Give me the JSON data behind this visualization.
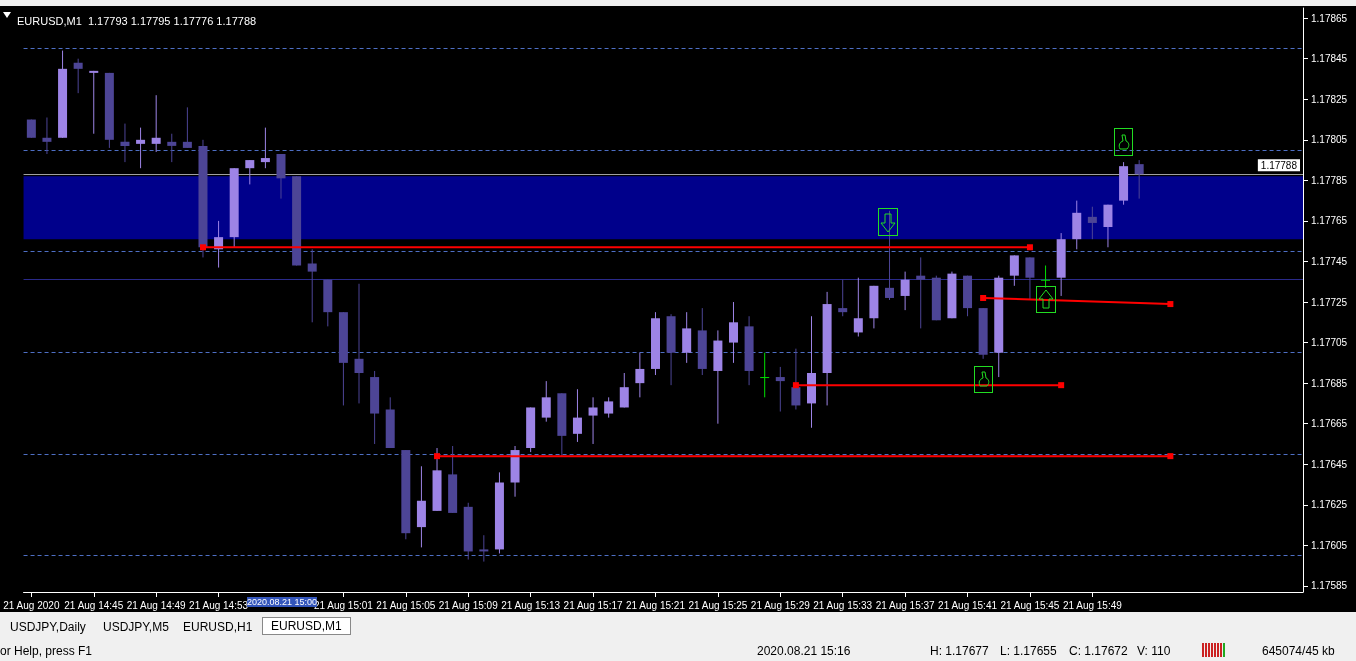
{
  "chart_data": {
    "type": "candlestick",
    "title": "EURUSD,M1  1.17793 1.17795 1.17776 1.17788",
    "categories": [
      "21 Aug 2020",
      null,
      null,
      null,
      "21 Aug 14:45",
      null,
      null,
      null,
      "21 Aug 14:49",
      null,
      null,
      null,
      "21 Aug 14:53",
      null,
      null,
      null,
      null,
      null,
      null,
      null,
      "21 Aug 15:01",
      null,
      null,
      null,
      "21 Aug 15:05",
      null,
      null,
      null,
      "21 Aug 15:09",
      null,
      null,
      null,
      "21 Aug 15:13",
      null,
      null,
      null,
      "21 Aug 15:17",
      null,
      null,
      null,
      "21 Aug 15:21",
      null,
      null,
      null,
      "21 Aug 15:25",
      null,
      null,
      null,
      "21 Aug 15:29",
      null,
      null,
      null,
      "21 Aug 15:33",
      null,
      null,
      null,
      "21 Aug 15:37",
      null,
      null,
      null,
      "21 Aug 15:41",
      null,
      null,
      null,
      "21 Aug 15:45",
      null,
      null,
      null,
      "21 Aug 15:49",
      null,
      null,
      null,
      null,
      null,
      null,
      null,
      null,
      null,
      null,
      null,
      null,
      null
    ],
    "ohlc": [
      [
        1.17815,
        1.17815,
        1.17806,
        1.17806
      ],
      [
        1.17806,
        1.17816,
        1.17798,
        1.17804
      ],
      [
        1.17806,
        1.17849,
        1.17806,
        1.1784
      ],
      [
        1.17843,
        1.17845,
        1.17828,
        1.1784
      ],
      [
        1.17838,
        1.17839,
        1.17808,
        1.17839
      ],
      [
        1.17838,
        1.17838,
        1.17801,
        1.17805
      ],
      [
        1.17804,
        1.17813,
        1.17794,
        1.17802
      ],
      [
        1.17803,
        1.17811,
        1.17791,
        1.17805
      ],
      [
        1.17803,
        1.17827,
        1.17799,
        1.17806
      ],
      [
        1.17804,
        1.17808,
        1.17794,
        1.17802
      ],
      [
        1.17804,
        1.17821,
        1.17801,
        1.17801
      ],
      [
        1.17802,
        1.17805,
        1.17747,
        1.17752
      ],
      [
        1.17751,
        1.17765,
        1.17742,
        1.17757
      ],
      [
        1.17757,
        1.17791,
        1.17752,
        1.17791
      ],
      [
        1.17791,
        1.17795,
        1.17783,
        1.17795
      ],
      [
        1.17794,
        1.17811,
        1.17791,
        1.17796
      ],
      [
        1.17798,
        1.17798,
        1.17776,
        1.17786
      ],
      [
        1.17787,
        1.17787,
        1.17743,
        1.17743
      ],
      [
        1.17744,
        1.17751,
        1.17715,
        1.1774
      ],
      [
        1.17736,
        1.17736,
        1.17713,
        1.1772
      ],
      [
        1.1772,
        1.1772,
        1.17674,
        1.17695
      ],
      [
        1.17697,
        1.17734,
        1.17675,
        1.1769
      ],
      [
        1.17688,
        1.17691,
        1.17655,
        1.1767
      ],
      [
        1.17672,
        1.17678,
        1.17653,
        1.17653
      ],
      [
        1.17652,
        1.17652,
        1.17608,
        1.17611
      ],
      [
        1.17614,
        1.17644,
        1.17604,
        1.17627
      ],
      [
        1.17622,
        1.17653,
        1.17622,
        1.17642
      ],
      [
        1.1764,
        1.17654,
        1.17621,
        1.17621
      ],
      [
        1.17624,
        1.17626,
        1.17598,
        1.17602
      ],
      [
        1.17603,
        1.1761,
        1.17597,
        1.17602
      ],
      [
        1.17603,
        1.17641,
        1.17601,
        1.17636
      ],
      [
        1.17636,
        1.17654,
        1.17629,
        1.17652
      ],
      [
        1.17653,
        1.17673,
        1.17651,
        1.17673
      ],
      [
        1.17668,
        1.17686,
        1.17666,
        1.17678
      ],
      [
        1.1768,
        1.1768,
        1.17649,
        1.17659
      ],
      [
        1.1766,
        1.17682,
        1.17656,
        1.17668
      ],
      [
        1.17669,
        1.17678,
        1.17655,
        1.17673
      ],
      [
        1.1767,
        1.17678,
        1.17668,
        1.17676
      ],
      [
        1.17673,
        1.1769,
        1.17673,
        1.17683
      ],
      [
        1.17685,
        1.177,
        1.17678,
        1.17692
      ],
      [
        1.17692,
        1.1772,
        1.17689,
        1.17717
      ],
      [
        1.17718,
        1.17719,
        1.17684,
        1.177
      ],
      [
        1.177,
        1.1772,
        1.17695,
        1.17712
      ],
      [
        1.17711,
        1.17722,
        1.17689,
        1.17692
      ],
      [
        1.17691,
        1.17711,
        1.17665,
        1.17706
      ],
      [
        1.17705,
        1.17725,
        1.17695,
        1.17715
      ],
      [
        1.17713,
        1.17718,
        1.17684,
        1.17691
      ],
      [
        1.17688,
        1.177,
        1.17678,
        1.17688
      ],
      [
        1.17688,
        1.17693,
        1.17671,
        1.17686
      ],
      [
        1.17683,
        1.17702,
        1.17672,
        1.17674
      ],
      [
        1.17675,
        1.17718,
        1.17663,
        1.1769
      ],
      [
        1.1769,
        1.1773,
        1.17674,
        1.17724
      ],
      [
        1.17722,
        1.17736,
        1.17718,
        1.1772
      ],
      [
        1.1771,
        1.17737,
        1.17708,
        1.17717
      ],
      [
        1.17717,
        1.17733,
        1.17712,
        1.17733
      ],
      [
        1.17732,
        1.1777,
        1.17726,
        1.17727
      ],
      [
        1.17728,
        1.1774,
        1.17721,
        1.17736
      ],
      [
        1.17738,
        1.17747,
        1.17712,
        1.17736
      ],
      [
        1.17737,
        1.17738,
        1.17716,
        1.17716
      ],
      [
        1.17717,
        1.1774,
        1.17717,
        1.17739
      ],
      [
        1.17738,
        1.17738,
        1.17718,
        1.17722
      ],
      [
        1.17722,
        1.17722,
        1.17697,
        1.17699
      ],
      [
        1.177,
        1.17738,
        1.17688,
        1.17737
      ],
      [
        1.17738,
        1.17748,
        1.17733,
        1.17748
      ],
      [
        1.17747,
        1.17747,
        1.17726,
        1.17737
      ],
      [
        1.17736,
        1.17743,
        1.17732,
        1.17736
      ],
      [
        1.17737,
        1.17759,
        1.17728,
        1.17756
      ],
      [
        1.17756,
        1.17775,
        1.17751,
        1.17769
      ],
      [
        1.17767,
        1.17772,
        1.17756,
        1.17764
      ],
      [
        1.17762,
        1.17773,
        1.17752,
        1.17773
      ],
      [
        1.17775,
        1.17794,
        1.17773,
        1.17792
      ],
      [
        1.17793,
        1.17795,
        1.17776,
        1.17788
      ],
      null,
      null,
      null,
      null,
      null,
      null,
      null,
      null,
      null,
      null
    ],
    "colors": [
      "#4d4596",
      "#4d4596",
      "#9d84e6",
      "#4d4596",
      "#9d84e6",
      "#4d4596",
      "#4d4596",
      "#9d84e6",
      "#9d84e6",
      "#4d4596",
      "#4d4596",
      "#4d4596",
      "#9d84e6",
      "#9d84e6",
      "#9d84e6",
      "#9d84e6",
      "#4d4596",
      "#4d4596",
      "#4d4596",
      "#4d4596",
      "#4d4596",
      "#4d4596",
      "#4d4596",
      "#4d4596",
      "#4d4596",
      "#9d84e6",
      "#9d84e6",
      "#4d4596",
      "#4d4596",
      "#4d4596",
      "#9d84e6",
      "#9d84e6",
      "#9d84e6",
      "#9d84e6",
      "#4d4596",
      "#9d84e6",
      "#9d84e6",
      "#9d84e6",
      "#9d84e6",
      "#9d84e6",
      "#9d84e6",
      "#4d4596",
      "#9d84e6",
      "#4d4596",
      "#9d84e6",
      "#9d84e6",
      "#4d4596",
      "#00e000",
      "#4d4596",
      "#4d4596",
      "#9d84e6",
      "#9d84e6",
      "#4d4596",
      "#9d84e6",
      "#9d84e6",
      "#4d4596",
      "#9d84e6",
      "#4d4596",
      "#4d4596",
      "#9d84e6",
      "#4d4596",
      "#4d4596",
      "#9d84e6",
      "#9d84e6",
      "#4d4596",
      "#00e000",
      "#9d84e6",
      "#9d84e6",
      "#4d4596",
      "#9d84e6",
      "#9d84e6",
      "#4d4596",
      null,
      null,
      null,
      null,
      null,
      null,
      null,
      null,
      null,
      null
    ],
    "series": [
      {
        "type": "line",
        "color": "#ff0000",
        "marker": "square",
        "values": [
          null,
          null,
          null,
          null,
          null,
          null,
          null,
          null,
          null,
          null,
          null,
          1.17752,
          null,
          null,
          null,
          null,
          null,
          null,
          null,
          null,
          null,
          null,
          null,
          null,
          null,
          null,
          null,
          null,
          null,
          null,
          null,
          null,
          null,
          null,
          null,
          null,
          null,
          null,
          null,
          null,
          null,
          null,
          null,
          null,
          null,
          null,
          null,
          null,
          null,
          null,
          null,
          null,
          null,
          null,
          null,
          null,
          null,
          null,
          null,
          null,
          null,
          null,
          null,
          null,
          1.17752,
          null,
          null,
          null,
          null,
          null,
          null,
          null,
          null,
          null,
          null,
          null,
          null,
          null,
          null,
          null,
          null,
          null
        ]
      },
      {
        "type": "line",
        "color": "#ff0000",
        "marker": "square",
        "values": [
          null,
          null,
          null,
          null,
          null,
          null,
          null,
          null,
          null,
          null,
          null,
          null,
          null,
          null,
          null,
          null,
          null,
          null,
          null,
          null,
          null,
          null,
          null,
          null,
          null,
          null,
          1.17649,
          null,
          null,
          null,
          null,
          null,
          null,
          null,
          null,
          null,
          null,
          null,
          null,
          null,
          null,
          null,
          null,
          null,
          null,
          null,
          null,
          null,
          null,
          null,
          null,
          null,
          null,
          null,
          null,
          null,
          null,
          null,
          null,
          null,
          null,
          null,
          null,
          null,
          null,
          null,
          null,
          null,
          null,
          null,
          null,
          null,
          null,
          1.17649,
          null,
          null,
          null,
          null,
          null,
          null,
          null,
          null
        ]
      },
      {
        "type": "line",
        "color": "#ff0000",
        "marker": "square",
        "values": [
          null,
          null,
          null,
          null,
          null,
          null,
          null,
          null,
          null,
          null,
          null,
          null,
          null,
          null,
          null,
          null,
          null,
          null,
          null,
          null,
          null,
          null,
          null,
          null,
          null,
          null,
          null,
          null,
          null,
          null,
          null,
          null,
          null,
          null,
          null,
          null,
          null,
          null,
          null,
          null,
          null,
          null,
          null,
          null,
          null,
          null,
          null,
          null,
          null,
          1.17684,
          null,
          null,
          null,
          null,
          null,
          null,
          null,
          null,
          null,
          null,
          null,
          null,
          null,
          null,
          null,
          null,
          1.17684,
          null,
          null,
          null,
          null,
          null,
          null,
          null,
          null,
          null,
          null,
          null,
          null,
          null,
          null,
          null
        ]
      },
      {
        "type": "line",
        "color": "#ff0000",
        "marker": "square",
        "values": [
          null,
          null,
          null,
          null,
          null,
          null,
          null,
          null,
          null,
          null,
          null,
          null,
          null,
          null,
          null,
          null,
          null,
          null,
          null,
          null,
          null,
          null,
          null,
          null,
          null,
          null,
          null,
          null,
          null,
          null,
          null,
          null,
          null,
          null,
          null,
          null,
          null,
          null,
          null,
          null,
          null,
          null,
          null,
          null,
          null,
          null,
          null,
          null,
          null,
          null,
          null,
          null,
          null,
          null,
          null,
          null,
          null,
          null,
          null,
          null,
          null,
          1.17727,
          null,
          null,
          null,
          null,
          null,
          null,
          null,
          null,
          null,
          null,
          null,
          1.17724,
          null,
          null,
          null,
          null,
          null,
          null,
          null,
          null
        ]
      }
    ],
    "ylim": [
      1.17582,
      1.1787
    ],
    "yticks": [
      1.17865,
      1.17845,
      1.17825,
      1.17805,
      1.17785,
      1.17765,
      1.17745,
      1.17725,
      1.17705,
      1.17685,
      1.17665,
      1.17645,
      1.17625,
      1.17605,
      1.17585
    ],
    "ref_lines": [
      {
        "axis": "y",
        "value": 1.1785,
        "color": "#4e6fc4",
        "line_style": "dashed"
      },
      {
        "axis": "y",
        "value": 1.178,
        "color": "#4e6fc4",
        "line_style": "dashed"
      },
      {
        "axis": "y",
        "value": 1.1775,
        "color": "#4e6fc4",
        "line_style": "dashed"
      },
      {
        "axis": "y",
        "value": 1.177,
        "color": "#4e6fc4",
        "line_style": "dashed"
      },
      {
        "axis": "y",
        "value": 1.1765,
        "color": "#4e6fc4",
        "line_style": "dashed"
      },
      {
        "axis": "y",
        "value": 1.176,
        "color": "#4e6fc4",
        "line_style": "dashed"
      },
      {
        "axis": "y",
        "value": 1.17736,
        "color": "#2a2a8a",
        "line_style": "solid"
      },
      {
        "axis": "y",
        "value": 1.17788,
        "label": "1.17788",
        "color": "#a0a0a0",
        "line_style": "solid"
      }
    ],
    "bands": [
      {
        "axis": "y",
        "from": 1.17756,
        "to": 1.17787,
        "color": "#00008b"
      }
    ],
    "annotations": [
      "USDJPY,Daily",
      "USDJPY,M5",
      "EURUSD,H1",
      "EURUSD,M1",
      "or Help, press F1",
      "2020.08.21 15:16",
      "H: 1.17677",
      "L: 1.17655",
      "C: 1.17672",
      "V: 110",
      "645074/45 kb",
      "2020.08.21 15:00"
    ]
  }
}
